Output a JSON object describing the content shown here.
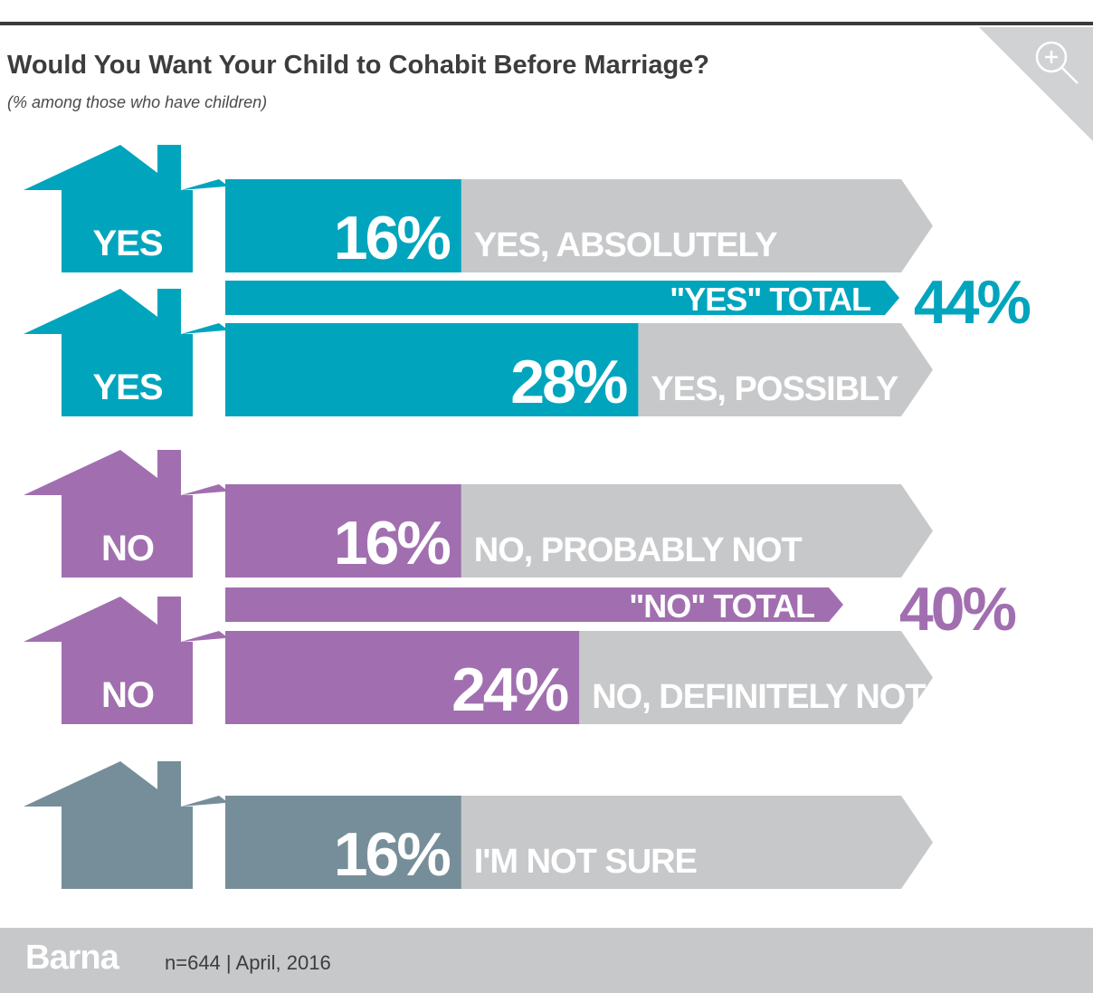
{
  "title": "Would You Want Your Child to Cohabit Before Marriage?",
  "subtitle": "(% among those who have children)",
  "footer": {
    "brand": "Barna",
    "sample_note": "n=644  |  April, 2016"
  },
  "colors": {
    "yes": "#00a5bd",
    "no": "#a16fb0",
    "unsure": "#768e99",
    "track": "#c7c8ca",
    "corner": "#d1d2d4"
  },
  "icons": {
    "zoom": "magnify-plus-icon"
  },
  "chart_data": {
    "type": "bar",
    "title": "Would You Want Your Child to Cohabit Before Marriage?",
    "subtitle": "(% among those who have children)",
    "unit": "%",
    "xlim": [
      0,
      100
    ],
    "rows": [
      {
        "group": "yes",
        "house_label": "YES",
        "value": 16,
        "value_label": "16%",
        "category": "YES, ABSOLUTELY"
      },
      {
        "group": "yes",
        "house_label": "YES",
        "value": 28,
        "value_label": "28%",
        "category": "YES, POSSIBLY"
      },
      {
        "group": "no",
        "house_label": "NO",
        "value": 16,
        "value_label": "16%",
        "category": "NO, PROBABLY NOT"
      },
      {
        "group": "no",
        "house_label": "NO",
        "value": 24,
        "value_label": "24%",
        "category": "NO, DEFINITELY NOT"
      },
      {
        "group": "unsure",
        "house_label": "",
        "value": 16,
        "value_label": "16%",
        "category": "I'M NOT SURE"
      }
    ],
    "totals": [
      {
        "group": "yes",
        "label": "\"YES\" TOTAL",
        "value": 44,
        "value_label": "44%"
      },
      {
        "group": "no",
        "label": "\"NO\" TOTAL",
        "value": 40,
        "value_label": "40%"
      }
    ]
  }
}
